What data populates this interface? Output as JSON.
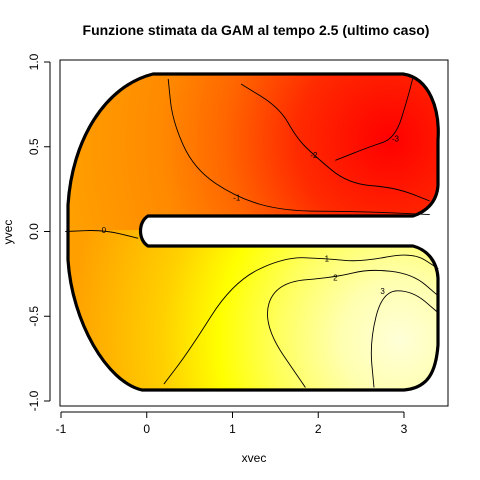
{
  "chart_data": {
    "type": "contour",
    "title": "Funzione stimata da GAM al tempo 2.5 (ultimo caso)",
    "xlabel": "xvec",
    "ylabel": "yvec",
    "xlim": [
      -1,
      3.5
    ],
    "ylim": [
      -1,
      1
    ],
    "x_ticks": [
      -1,
      0,
      1,
      2,
      3
    ],
    "y_ticks": [
      -1.0,
      -0.5,
      0.0,
      0.5,
      1.0
    ],
    "x_tick_labels": [
      "-1",
      "0",
      "1",
      "2",
      "3"
    ],
    "y_tick_labels": [
      "-1.0",
      "-0.5",
      "0.0",
      "0.5",
      "1.0"
    ],
    "domain": "horseshoe (C-shaped) region, opening toward negative x",
    "color_scale": [
      "#ff0000",
      "#ff3d00",
      "#ff7800",
      "#ffa000",
      "#ffd000",
      "#ffff00",
      "#ffff8c",
      "#ffffd8"
    ],
    "contours": [
      {
        "level": -3,
        "label": "-3",
        "points": [
          [
            2.2,
            0.42
          ],
          [
            2.6,
            0.5
          ],
          [
            2.9,
            0.55
          ],
          [
            3.05,
            0.8
          ],
          [
            3.1,
            0.9
          ]
        ]
      },
      {
        "level": -2,
        "label": "-2",
        "points": [
          [
            1.1,
            0.87
          ],
          [
            1.55,
            0.73
          ],
          [
            1.75,
            0.55
          ],
          [
            1.95,
            0.45
          ],
          [
            2.35,
            0.28
          ],
          [
            2.9,
            0.26
          ],
          [
            3.3,
            0.18
          ]
        ]
      },
      {
        "level": -1,
        "label": "-1",
        "points": [
          [
            0.25,
            0.9
          ],
          [
            0.3,
            0.65
          ],
          [
            0.55,
            0.37
          ],
          [
            1.05,
            0.2
          ],
          [
            1.6,
            0.12
          ],
          [
            2.4,
            0.12
          ],
          [
            3.3,
            0.1
          ]
        ]
      },
      {
        "level": 0,
        "label": "0",
        "points": [
          [
            -0.95,
            0.0
          ],
          [
            -0.5,
            0.01
          ],
          [
            -0.1,
            -0.04
          ]
        ]
      },
      {
        "level": 1,
        "label": "1",
        "points": [
          [
            0.2,
            -0.9
          ],
          [
            0.5,
            -0.7
          ],
          [
            1.0,
            -0.3
          ],
          [
            1.6,
            -0.15
          ],
          [
            2.1,
            -0.16
          ],
          [
            2.5,
            -0.18
          ],
          [
            3.1,
            -0.12
          ],
          [
            3.4,
            -0.22
          ]
        ]
      },
      {
        "level": 2,
        "label": "2",
        "points": [
          [
            1.85,
            -0.92
          ],
          [
            1.35,
            -0.55
          ],
          [
            1.5,
            -0.3
          ],
          [
            2.2,
            -0.27
          ],
          [
            2.6,
            -0.22
          ],
          [
            3.1,
            -0.25
          ],
          [
            3.4,
            -0.38
          ]
        ]
      },
      {
        "level": 3,
        "label": "3",
        "points": [
          [
            2.65,
            -0.92
          ],
          [
            2.6,
            -0.65
          ],
          [
            2.75,
            -0.35
          ],
          [
            3.1,
            -0.35
          ],
          [
            3.4,
            -0.48
          ]
        ]
      }
    ]
  }
}
